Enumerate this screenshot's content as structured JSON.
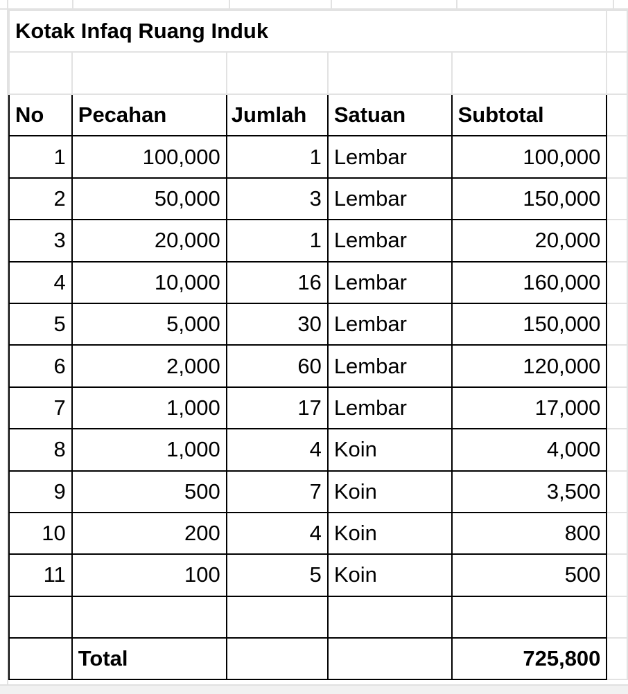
{
  "sheet": {
    "title": "Kotak Infaq Ruang Induk",
    "headers": [
      "No",
      "Pecahan",
      "Jumlah",
      "Satuan",
      "Subtotal"
    ],
    "rows": [
      [
        "1",
        "100,000",
        "1",
        "Lembar",
        "100,000"
      ],
      [
        "2",
        "50,000",
        "3",
        "Lembar",
        "150,000"
      ],
      [
        "3",
        "20,000",
        "1",
        "Lembar",
        "20,000"
      ],
      [
        "4",
        "10,000",
        "16",
        "Lembar",
        "160,000"
      ],
      [
        "5",
        "5,000",
        "30",
        "Lembar",
        "150,000"
      ],
      [
        "6",
        "2,000",
        "60",
        "Lembar",
        "120,000"
      ],
      [
        "7",
        "1,000",
        "17",
        "Lembar",
        "17,000"
      ],
      [
        "8",
        "1,000",
        "4",
        "Koin",
        "4,000"
      ],
      [
        "9",
        "500",
        "7",
        "Koin",
        "3,500"
      ],
      [
        "10",
        "200",
        "4",
        "Koin",
        "800"
      ],
      [
        "11",
        "100",
        "5",
        "Koin",
        "500"
      ]
    ],
    "total_label": "Total",
    "total_value": "725,800"
  }
}
